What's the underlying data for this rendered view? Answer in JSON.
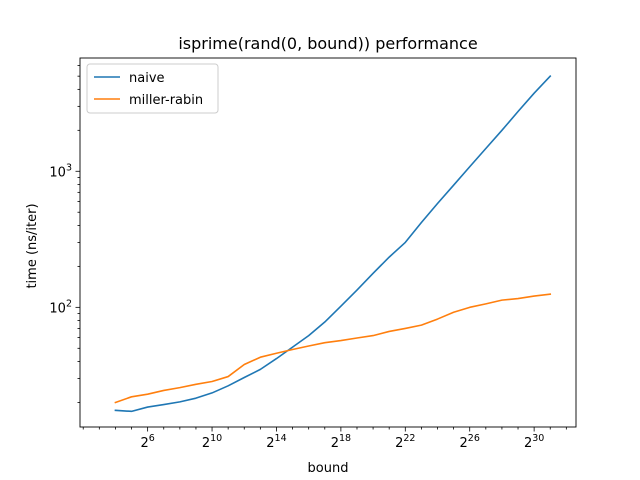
{
  "chart_data": {
    "type": "line",
    "title": "isprime(rand(0, bound)) performance",
    "xlabel": "bound",
    "ylabel": "time (ns/iter)",
    "x_scale": "log2",
    "y_scale": "log10",
    "x_range_exponent": [
      1.8,
      32.6
    ],
    "y_range": [
      13.2,
      6800
    ],
    "x_ticks": [
      {
        "exp": 6,
        "base": "2",
        "sup": "6"
      },
      {
        "exp": 10,
        "base": "2",
        "sup": "10"
      },
      {
        "exp": 14,
        "base": "2",
        "sup": "14"
      },
      {
        "exp": 18,
        "base": "2",
        "sup": "18"
      },
      {
        "exp": 22,
        "base": "2",
        "sup": "22"
      },
      {
        "exp": 26,
        "base": "2",
        "sup": "26"
      },
      {
        "exp": 30,
        "base": "2",
        "sup": "30"
      }
    ],
    "y_ticks": [
      {
        "value": 100,
        "base": "10",
        "sup": "2"
      },
      {
        "value": 1000,
        "base": "10",
        "sup": "3"
      }
    ],
    "legend_position": "top-left",
    "grid": false,
    "series": [
      {
        "name": "naive",
        "color": "#1f77b4",
        "x_exponent": [
          4,
          5,
          6,
          7,
          8,
          9,
          10,
          11,
          12,
          13,
          14,
          15,
          16,
          17,
          18,
          19,
          20,
          21,
          22,
          23,
          24,
          25,
          26,
          27,
          28,
          29,
          30,
          31
        ],
        "values": [
          17.5,
          17.2,
          18.5,
          19.3,
          20.2,
          21.5,
          23.5,
          26.5,
          30.5,
          35,
          42,
          51,
          62,
          78,
          102,
          134,
          178,
          234,
          300,
          420,
          580,
          790,
          1080,
          1470,
          2000,
          2750,
          3750,
          5000
        ]
      },
      {
        "name": "miller-rabin",
        "color": "#ff7f0e",
        "x_exponent": [
          4,
          5,
          6,
          7,
          8,
          9,
          10,
          11,
          12,
          13,
          14,
          15,
          16,
          17,
          18,
          19,
          20,
          21,
          22,
          23,
          24,
          25,
          26,
          27,
          28,
          29,
          30,
          31
        ],
        "values": [
          20,
          22,
          23,
          24.5,
          25.7,
          27.2,
          28.5,
          31,
          38,
          43,
          46,
          49,
          52,
          55,
          57,
          59.5,
          62,
          66.5,
          70,
          74,
          82,
          92,
          100,
          106,
          113,
          116,
          121,
          125
        ]
      }
    ]
  }
}
